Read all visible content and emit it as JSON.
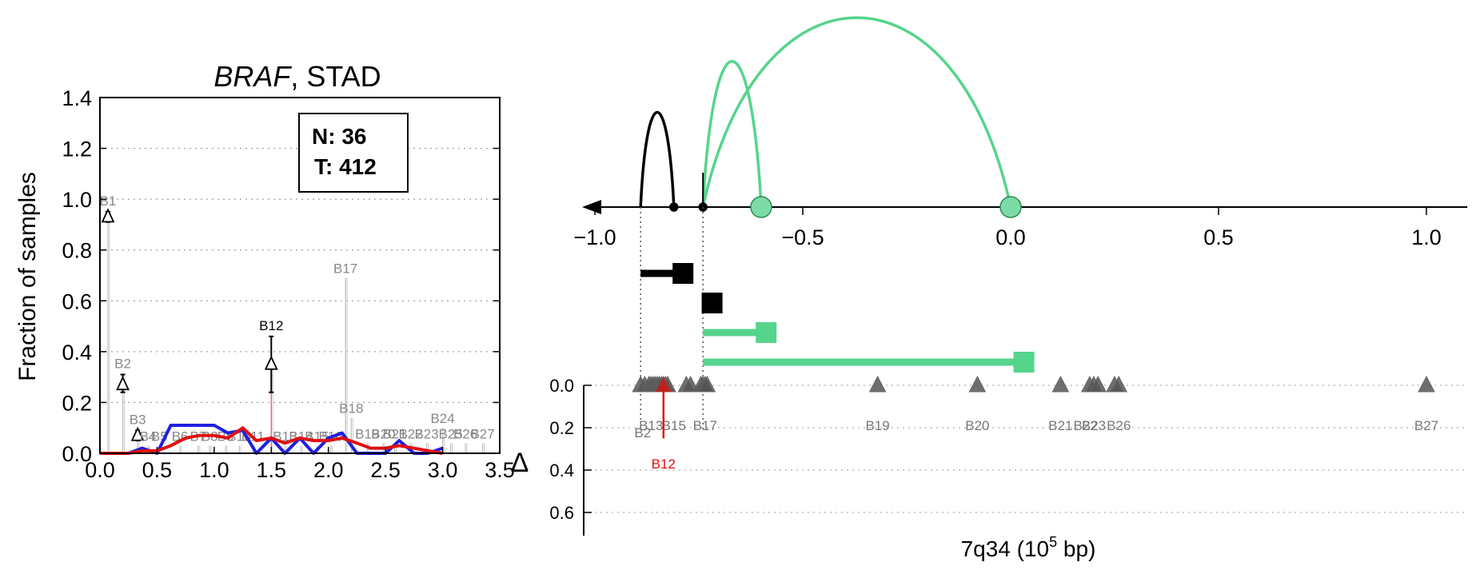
{
  "chart_data": [
    {
      "type": "line",
      "title_gene": "BRAF",
      "title_rest": ", STAD",
      "ylabel": "Fraction of samples",
      "xlim": [
        0,
        3.5
      ],
      "ylim": [
        0,
        1.4
      ],
      "x_ticks": [
        "0.0",
        "0.5",
        "1.0",
        "1.5",
        "2.0",
        "2.5",
        "3.0",
        "3.5"
      ],
      "y_ticks": [
        "0.0",
        "0.2",
        "0.4",
        "0.6",
        "0.8",
        "1.0",
        "1.2",
        "1.4"
      ],
      "legend_box": {
        "n_label": "N: 36",
        "t_label": "T: 412",
        "placement": "top-center-right"
      },
      "series": [
        {
          "color": "#1f1fe0",
          "x": [
            0.0,
            0.12,
            0.25,
            0.37,
            0.5,
            0.62,
            0.75,
            0.87,
            1.0,
            1.12,
            1.25,
            1.37,
            1.5,
            1.62,
            1.75,
            1.87,
            2.0,
            2.12,
            2.25,
            2.37,
            2.5,
            2.62,
            2.75,
            2.87,
            3.0
          ],
          "values": [
            0.0,
            0.0,
            0.0,
            0.02,
            0.0,
            0.11,
            0.11,
            0.11,
            0.11,
            0.08,
            0.09,
            0.0,
            0.06,
            0.0,
            0.06,
            0.0,
            0.06,
            0.08,
            0.0,
            0.0,
            0.0,
            0.05,
            0.0,
            0.0,
            0.02
          ]
        },
        {
          "color": "#e01010",
          "x": [
            0.0,
            0.12,
            0.25,
            0.37,
            0.5,
            0.62,
            0.75,
            0.87,
            1.0,
            1.12,
            1.25,
            1.37,
            1.5,
            1.62,
            1.75,
            1.87,
            2.0,
            2.12,
            2.25,
            2.37,
            2.5,
            2.62,
            2.75,
            2.87,
            3.0
          ],
          "values": [
            0.0,
            0.0,
            0.0,
            0.01,
            0.01,
            0.03,
            0.06,
            0.07,
            0.07,
            0.06,
            0.1,
            0.05,
            0.06,
            0.04,
            0.06,
            0.05,
            0.05,
            0.06,
            0.04,
            0.02,
            0.02,
            0.03,
            0.02,
            0.01,
            0.0
          ]
        }
      ],
      "bins": [
        {
          "label": "B1",
          "x": 0.07,
          "value": 0.93,
          "lo": 0.91,
          "hi": 0.95,
          "tri": true,
          "highlight": false
        },
        {
          "label": "B2",
          "x": 0.2,
          "value": 0.27,
          "lo": 0.24,
          "hi": 0.31,
          "tri": true,
          "highlight": false
        },
        {
          "label": "B3",
          "x": 0.33,
          "value": 0.07,
          "lo": 0.05,
          "hi": 0.09,
          "tri": true,
          "highlight": false
        },
        {
          "label": "B4",
          "x": 0.42,
          "value": 0.03,
          "tri": false,
          "highlight": false
        },
        {
          "label": "B5",
          "x": 0.52,
          "value": 0.03,
          "tri": false,
          "highlight": false
        },
        {
          "label": "B6",
          "x": 0.7,
          "value": 0.03,
          "tri": false,
          "highlight": false
        },
        {
          "label": "B7",
          "x": 0.86,
          "value": 0.03,
          "tri": false,
          "highlight": false
        },
        {
          "label": "B8",
          "x": 0.96,
          "value": 0.03,
          "tri": false,
          "highlight": false
        },
        {
          "label": "B9",
          "x": 1.1,
          "value": 0.03,
          "tri": false,
          "highlight": false
        },
        {
          "label": "B10",
          "x": 1.22,
          "value": 0.03,
          "tri": false,
          "highlight": false
        },
        {
          "label": "B11",
          "x": 1.34,
          "value": 0.03,
          "tri": false,
          "highlight": false
        },
        {
          "label": "B12",
          "x": 1.5,
          "value": 0.35,
          "lo": 0.24,
          "hi": 0.46,
          "tri": true,
          "highlight": true
        },
        {
          "label": "B13",
          "x": 1.62,
          "value": 0.03,
          "tri": false,
          "highlight": false
        },
        {
          "label": "B14",
          "x": 1.76,
          "value": 0.03,
          "tri": false,
          "highlight": false
        },
        {
          "label": "B15",
          "x": 1.9,
          "value": 0.03,
          "tri": false,
          "highlight": false
        },
        {
          "label": "B16",
          "x": 2.02,
          "value": 0.03,
          "tri": false,
          "highlight": false
        },
        {
          "label": "B17",
          "x": 2.15,
          "value": 0.69,
          "tri": false,
          "highlight": false
        },
        {
          "label": "B18",
          "x": 2.2,
          "value": 0.14,
          "tri": false,
          "highlight": false
        },
        {
          "label": "B19",
          "x": 2.34,
          "value": 0.04,
          "tri": false,
          "highlight": false
        },
        {
          "label": "B20",
          "x": 2.48,
          "value": 0.04,
          "tri": false,
          "highlight": false
        },
        {
          "label": "B21",
          "x": 2.58,
          "value": 0.04,
          "tri": false,
          "highlight": false
        },
        {
          "label": "B22",
          "x": 2.72,
          "value": 0.04,
          "tri": false,
          "highlight": false
        },
        {
          "label": "B23",
          "x": 2.86,
          "value": 0.04,
          "tri": false,
          "highlight": false
        },
        {
          "label": "B24",
          "x": 3.0,
          "value": 0.1,
          "tri": false,
          "highlight": false
        },
        {
          "label": "B25",
          "x": 3.07,
          "value": 0.04,
          "tri": false,
          "highlight": false
        },
        {
          "label": "B26",
          "x": 3.2,
          "value": 0.04,
          "tri": false,
          "highlight": false
        },
        {
          "label": "B27",
          "x": 3.35,
          "value": 0.04,
          "tri": false,
          "highlight": false
        }
      ]
    },
    {
      "type": "scatter",
      "xlabel_main": "7q34 (10",
      "xlabel_exp": "5",
      "xlabel_tail": " bp)",
      "ylabel": "Δ",
      "xlim": [
        -1.0,
        1.1
      ],
      "x_ticks": [
        "−1.0",
        "−0.5",
        "0.0",
        "0.5",
        "1.0"
      ],
      "y_ticks": [
        "0.0",
        "0.2",
        "0.4",
        "0.6"
      ],
      "arcs": [
        {
          "start": -0.89,
          "end": -0.81,
          "height": 1.3,
          "color": "#000000"
        },
        {
          "start": -0.74,
          "end": -0.6,
          "height": 2.0,
          "color": "#55d48c"
        },
        {
          "start": -0.74,
          "end": 0.0,
          "height": 2.6,
          "color": "#55d48c"
        }
      ],
      "gene_markers": [
        {
          "x": -0.81,
          "color": "#000000",
          "size": "small"
        },
        {
          "x": -0.74,
          "color": "#000000",
          "size": "small"
        },
        {
          "x": -0.6,
          "color": "#7ddca5",
          "size": "large"
        },
        {
          "x": 0.0,
          "color": "#7ddca5",
          "size": "large"
        }
      ],
      "segments": [
        {
          "start": -0.89,
          "end": -0.79,
          "color": "#000000"
        },
        {
          "start": -0.74,
          "end": -0.72,
          "color": "#000000"
        },
        {
          "start": -0.74,
          "end": -0.59,
          "color": "#55d48c"
        },
        {
          "start": -0.74,
          "end": 0.03,
          "color": "#55d48c"
        }
      ],
      "markers": [
        {
          "label": "B1",
          "x": -0.89,
          "delta": 0.0
        },
        {
          "label": "B2",
          "x": -0.88,
          "delta": 0.0
        },
        {
          "label": "B3",
          "x": -0.87,
          "delta": 0.0
        },
        {
          "label": "B4",
          "x": -0.865,
          "delta": 0.0
        },
        {
          "label": "B5",
          "x": -0.86,
          "delta": 0.0
        },
        {
          "label": "B6",
          "x": -0.855,
          "delta": 0.0
        },
        {
          "label": "B7",
          "x": -0.85,
          "delta": 0.0
        },
        {
          "label": "B8",
          "x": -0.845,
          "delta": 0.0
        },
        {
          "label": "B9",
          "x": -0.84,
          "delta": 0.0
        },
        {
          "label": "B10",
          "x": -0.83,
          "delta": 0.0
        },
        {
          "label": "B11",
          "x": -0.825,
          "delta": 0.0
        },
        {
          "label": "B12",
          "x": -0.835,
          "delta": 0.0
        },
        {
          "label": "B13",
          "x": -0.78,
          "delta": 0.0
        },
        {
          "label": "B14",
          "x": -0.77,
          "delta": 0.0
        },
        {
          "label": "B15",
          "x": -0.745,
          "delta": 0.0
        },
        {
          "label": "B16",
          "x": -0.74,
          "delta": 0.0
        },
        {
          "label": "B17",
          "x": -0.735,
          "delta": 0.0
        },
        {
          "label": "B18",
          "x": -0.73,
          "delta": 0.0
        },
        {
          "label": "B19",
          "x": -0.32,
          "delta": 0.0
        },
        {
          "label": "B20",
          "x": -0.08,
          "delta": 0.0
        },
        {
          "label": "B21",
          "x": 0.12,
          "delta": 0.0
        },
        {
          "label": "B22",
          "x": 0.19,
          "delta": 0.0
        },
        {
          "label": "B23",
          "x": 0.2,
          "delta": 0.0
        },
        {
          "label": "B24",
          "x": 0.21,
          "delta": 0.0
        },
        {
          "label": "B25",
          "x": 0.25,
          "delta": 0.0
        },
        {
          "label": "B26",
          "x": 0.26,
          "delta": 0.0
        },
        {
          "label": "B27",
          "x": 1.0,
          "delta": 0.0
        }
      ],
      "marker_label_groups": [
        {
          "text": "B2",
          "x": -0.885,
          "dy": 2
        },
        {
          "text": "B13",
          "x": -0.865,
          "dy": 1
        },
        {
          "text": "B15",
          "x": -0.81,
          "dy": 1
        },
        {
          "text": "B17",
          "x": -0.735,
          "dy": 1
        },
        {
          "text": "B19",
          "x": -0.32,
          "dy": 1
        },
        {
          "text": "B20",
          "x": -0.08,
          "dy": 1
        },
        {
          "text": "B21",
          "x": 0.12,
          "dy": 1
        },
        {
          "text": "B22",
          "x": 0.18,
          "dy": 1
        },
        {
          "text": "B23",
          "x": 0.2,
          "dy": 1
        },
        {
          "text": "B26",
          "x": 0.26,
          "dy": 1
        },
        {
          "text": "B27",
          "x": 1.0,
          "dy": 1
        }
      ],
      "highlight_marker": {
        "label": "B12",
        "x": -0.835,
        "delta_lo": 0.0,
        "delta_hi": 0.25,
        "color": "#e01010"
      }
    }
  ]
}
